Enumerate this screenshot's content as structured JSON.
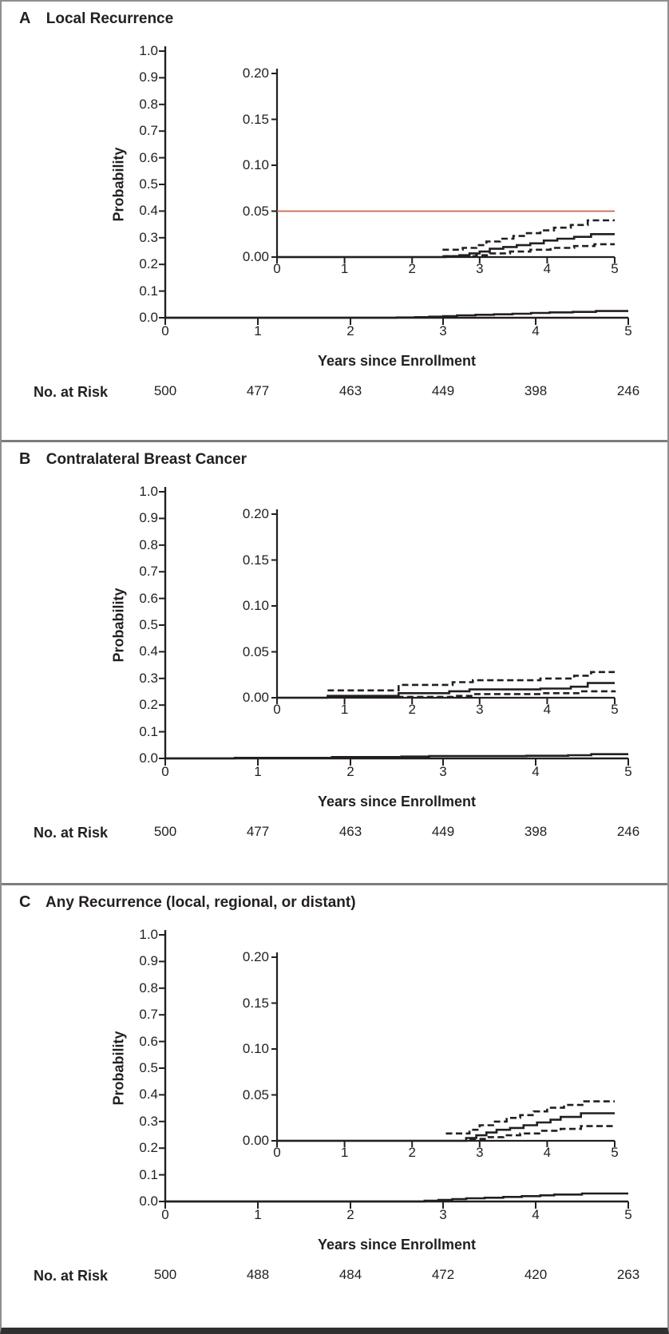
{
  "figure_styles": {
    "axis_color": "#231f20",
    "curve_color": "#231f20",
    "reference_line_color": "#d95f45",
    "border_color": "#8f8f8f"
  },
  "chart_data": [
    {
      "type": "line",
      "panel_letter": "A",
      "title": "Local Recurrence",
      "ylabel": "Probability",
      "xlabel": "Years since Enrollment",
      "main_axis": {
        "xlim": [
          0,
          5
        ],
        "ylim": [
          0,
          1.0
        ],
        "xticks": [
          "0",
          "1",
          "2",
          "3",
          "4",
          "5"
        ],
        "yticks": [
          "1.0",
          "0.9",
          "0.8",
          "0.7",
          "0.6",
          "0.5",
          "0.4",
          "0.3",
          "0.2",
          "0.1",
          "0.0"
        ],
        "grid": false
      },
      "inset_axis": {
        "xlim": [
          0,
          5
        ],
        "ylim": [
          0,
          0.2
        ],
        "xticks": [
          "0",
          "1",
          "2",
          "3",
          "4",
          "5"
        ],
        "yticks": [
          "0.20",
          "0.15",
          "0.10",
          "0.05",
          "0.00"
        ]
      },
      "reference_line_y": 0.05,
      "series": [
        {
          "name": "cumulative-incidence-estimate",
          "style": "solid",
          "points": [
            [
              0,
              0
            ],
            [
              2.5,
              0.001
            ],
            [
              2.7,
              0.002
            ],
            [
              2.85,
              0.004
            ],
            [
              3.0,
              0.006
            ],
            [
              3.15,
              0.009
            ],
            [
              3.35,
              0.011
            ],
            [
              3.55,
              0.013
            ],
            [
              3.75,
              0.015
            ],
            [
              3.95,
              0.018
            ],
            [
              4.15,
              0.02
            ],
            [
              4.4,
              0.022
            ],
            [
              4.65,
              0.025
            ],
            [
              5,
              0.025
            ]
          ]
        },
        {
          "name": "upper-95-ci",
          "style": "dashed",
          "points": [
            [
              2.45,
              0.008
            ],
            [
              2.75,
              0.01
            ],
            [
              2.95,
              0.013
            ],
            [
              3.1,
              0.017
            ],
            [
              3.3,
              0.02
            ],
            [
              3.5,
              0.023
            ],
            [
              3.7,
              0.026
            ],
            [
              3.9,
              0.029
            ],
            [
              4.1,
              0.032
            ],
            [
              4.35,
              0.035
            ],
            [
              4.6,
              0.04
            ],
            [
              5,
              0.04
            ]
          ]
        },
        {
          "name": "lower-95-ci",
          "style": "dashed",
          "points": [
            [
              2.45,
              0.001
            ],
            [
              2.95,
              0.002
            ],
            [
              3.15,
              0.004
            ],
            [
              3.45,
              0.006
            ],
            [
              3.75,
              0.008
            ],
            [
              4.05,
              0.01
            ],
            [
              4.4,
              0.012
            ],
            [
              4.7,
              0.014
            ],
            [
              5,
              0.014
            ]
          ]
        }
      ],
      "risk_table": {
        "label": "No. at Risk",
        "values": [
          "500",
          "477",
          "463",
          "449",
          "398",
          "246"
        ]
      }
    },
    {
      "type": "line",
      "panel_letter": "B",
      "title": "Contralateral Breast Cancer",
      "ylabel": "Probability",
      "xlabel": "Years since Enrollment",
      "main_axis": {
        "xlim": [
          0,
          5
        ],
        "ylim": [
          0,
          1.0
        ],
        "xticks": [
          "0",
          "1",
          "2",
          "3",
          "4",
          "5"
        ],
        "yticks": [
          "1.0",
          "0.9",
          "0.8",
          "0.7",
          "0.6",
          "0.5",
          "0.4",
          "0.3",
          "0.2",
          "0.1",
          "0.0"
        ],
        "grid": false
      },
      "inset_axis": {
        "xlim": [
          0,
          5
        ],
        "ylim": [
          0,
          0.2
        ],
        "xticks": [
          "0",
          "1",
          "2",
          "3",
          "4",
          "5"
        ],
        "yticks": [
          "0.20",
          "0.15",
          "0.10",
          "0.05",
          "0.00"
        ]
      },
      "reference_line_y": null,
      "series": [
        {
          "name": "cumulative-incidence-estimate",
          "style": "solid",
          "points": [
            [
              0,
              0
            ],
            [
              0.75,
              0.002
            ],
            [
              1.8,
              0.005
            ],
            [
              2.55,
              0.007
            ],
            [
              2.85,
              0.009
            ],
            [
              3.9,
              0.01
            ],
            [
              4.35,
              0.012
            ],
            [
              4.6,
              0.016
            ],
            [
              5,
              0.016
            ]
          ]
        },
        {
          "name": "upper-95-ci",
          "style": "dashed",
          "points": [
            [
              0.75,
              0.008
            ],
            [
              1.8,
              0.014
            ],
            [
              2.6,
              0.017
            ],
            [
              2.9,
              0.019
            ],
            [
              3.9,
              0.021
            ],
            [
              4.4,
              0.024
            ],
            [
              4.65,
              0.028
            ],
            [
              5,
              0.028
            ]
          ]
        },
        {
          "name": "lower-95-ci",
          "style": "dashed",
          "points": [
            [
              0.75,
              0.0005
            ],
            [
              1.8,
              0.001
            ],
            [
              2.6,
              0.002
            ],
            [
              2.9,
              0.004
            ],
            [
              3.9,
              0.005
            ],
            [
              4.5,
              0.007
            ],
            [
              5,
              0.008
            ]
          ]
        }
      ],
      "risk_table": {
        "label": "No. at Risk",
        "values": [
          "500",
          "477",
          "463",
          "449",
          "398",
          "246"
        ]
      }
    },
    {
      "type": "line",
      "panel_letter": "C",
      "title": "Any Recurrence (local, regional, or distant)",
      "ylabel": "Probability",
      "xlabel": "Years since Enrollment",
      "main_axis": {
        "xlim": [
          0,
          5
        ],
        "ylim": [
          0,
          1.0
        ],
        "xticks": [
          "0",
          "1",
          "2",
          "3",
          "4",
          "5"
        ],
        "yticks": [
          "1.0",
          "0.9",
          "0.8",
          "0.7",
          "0.6",
          "0.5",
          "0.4",
          "0.3",
          "0.2",
          "0.1",
          "0.0"
        ],
        "grid": false
      },
      "inset_axis": {
        "xlim": [
          0,
          5
        ],
        "ylim": [
          0,
          0.2
        ],
        "xticks": [
          "0",
          "1",
          "2",
          "3",
          "4",
          "5"
        ],
        "yticks": [
          "0.20",
          "0.15",
          "0.10",
          "0.05",
          "0.00"
        ]
      },
      "reference_line_y": null,
      "series": [
        {
          "name": "cumulative-incidence-estimate",
          "style": "solid",
          "points": [
            [
              0,
              0
            ],
            [
              2.8,
              0.003
            ],
            [
              2.95,
              0.006
            ],
            [
              3.1,
              0.009
            ],
            [
              3.25,
              0.012
            ],
            [
              3.45,
              0.014
            ],
            [
              3.65,
              0.017
            ],
            [
              3.85,
              0.02
            ],
            [
              4.05,
              0.023
            ],
            [
              4.2,
              0.026
            ],
            [
              4.5,
              0.03
            ],
            [
              5,
              0.03
            ]
          ]
        },
        {
          "name": "upper-95-ci",
          "style": "dashed",
          "points": [
            [
              2.5,
              0.008
            ],
            [
              2.85,
              0.012
            ],
            [
              3.0,
              0.017
            ],
            [
              3.2,
              0.021
            ],
            [
              3.4,
              0.025
            ],
            [
              3.6,
              0.028
            ],
            [
              3.8,
              0.032
            ],
            [
              4.0,
              0.036
            ],
            [
              4.25,
              0.039
            ],
            [
              4.55,
              0.043
            ],
            [
              5,
              0.043
            ]
          ]
        },
        {
          "name": "lower-95-ci",
          "style": "dashed",
          "points": [
            [
              2.85,
              0.002
            ],
            [
              3.1,
              0.004
            ],
            [
              3.35,
              0.006
            ],
            [
              3.6,
              0.008
            ],
            [
              3.9,
              0.011
            ],
            [
              4.2,
              0.013
            ],
            [
              4.5,
              0.016
            ],
            [
              5,
              0.017
            ]
          ]
        }
      ],
      "risk_table": {
        "label": "No. at Risk",
        "values": [
          "500",
          "488",
          "484",
          "472",
          "420",
          "263"
        ]
      }
    }
  ]
}
